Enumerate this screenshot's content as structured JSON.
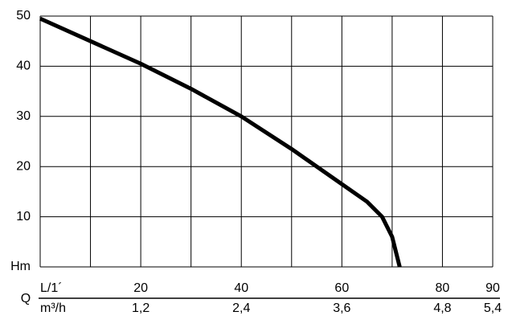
{
  "chart_data": {
    "type": "line",
    "x_unit_label": "L/1´",
    "x2_unit_label": "m³/h",
    "x_axis_label": "Q",
    "x": [
      0,
      10,
      20,
      30,
      40,
      50,
      60,
      65,
      68,
      70,
      71,
      71.5
    ],
    "series": [
      {
        "name": "curve",
        "color": "#000000",
        "values": [
          49.5,
          45,
          40.5,
          35.5,
          30,
          23.5,
          16.5,
          13,
          10,
          6,
          2,
          0
        ]
      }
    ],
    "xlim": [
      0,
      90
    ],
    "ylim": [
      0,
      50
    ],
    "x2lim": [
      0,
      5.4
    ],
    "xticks": [
      20,
      40,
      60,
      80,
      90
    ],
    "x2ticks": [
      {
        "value": 1.2,
        "label": "1,2"
      },
      {
        "value": 2.4,
        "label": "2,4"
      },
      {
        "value": 3.6,
        "label": "3,6"
      },
      {
        "value": 4.8,
        "label": "4,8"
      },
      {
        "value": 5.4,
        "label": "5,4"
      }
    ],
    "x_grid_lines": [
      0,
      10,
      20,
      30,
      40,
      50,
      60,
      70,
      80,
      90
    ],
    "yticks": [
      {
        "value": 0,
        "label": "Hm"
      },
      10,
      20,
      30,
      40,
      50
    ],
    "grid": true
  }
}
